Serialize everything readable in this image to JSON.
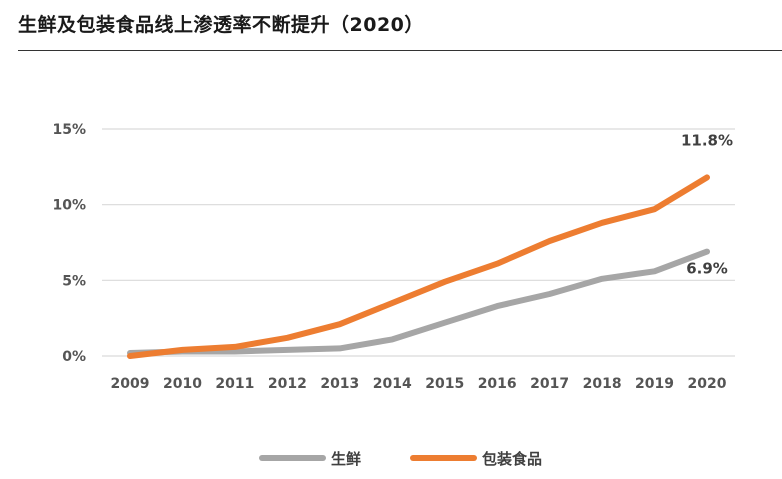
{
  "title": "生鲜及包装食品线上渗透率不断提升（2020）",
  "chart_data": {
    "type": "line",
    "title": "生鲜及包装食品线上渗透率不断提升（2020）",
    "x": [
      "2009",
      "2010",
      "2011",
      "2012",
      "2013",
      "2014",
      "2015",
      "2016",
      "2017",
      "2018",
      "2019",
      "2020"
    ],
    "ylim": [
      0,
      15
    ],
    "yticks": [
      0,
      5,
      10,
      15
    ],
    "ytick_labels": [
      "0%",
      "5%",
      "10%",
      "15%"
    ],
    "grid": true,
    "legend_position": "bottom",
    "series": [
      {
        "name": "生鲜",
        "color": "#a6a6a6",
        "values": [
          0.2,
          0.3,
          0.3,
          0.4,
          0.5,
          1.1,
          2.2,
          3.3,
          4.1,
          5.1,
          5.6,
          6.9
        ],
        "end_label": "6.9%"
      },
      {
        "name": "包装食品",
        "color": "#ed7d31",
        "values": [
          0.0,
          0.4,
          0.6,
          1.2,
          2.1,
          3.5,
          4.9,
          6.1,
          7.6,
          8.8,
          9.7,
          11.8
        ],
        "end_label": "11.8%"
      }
    ]
  }
}
